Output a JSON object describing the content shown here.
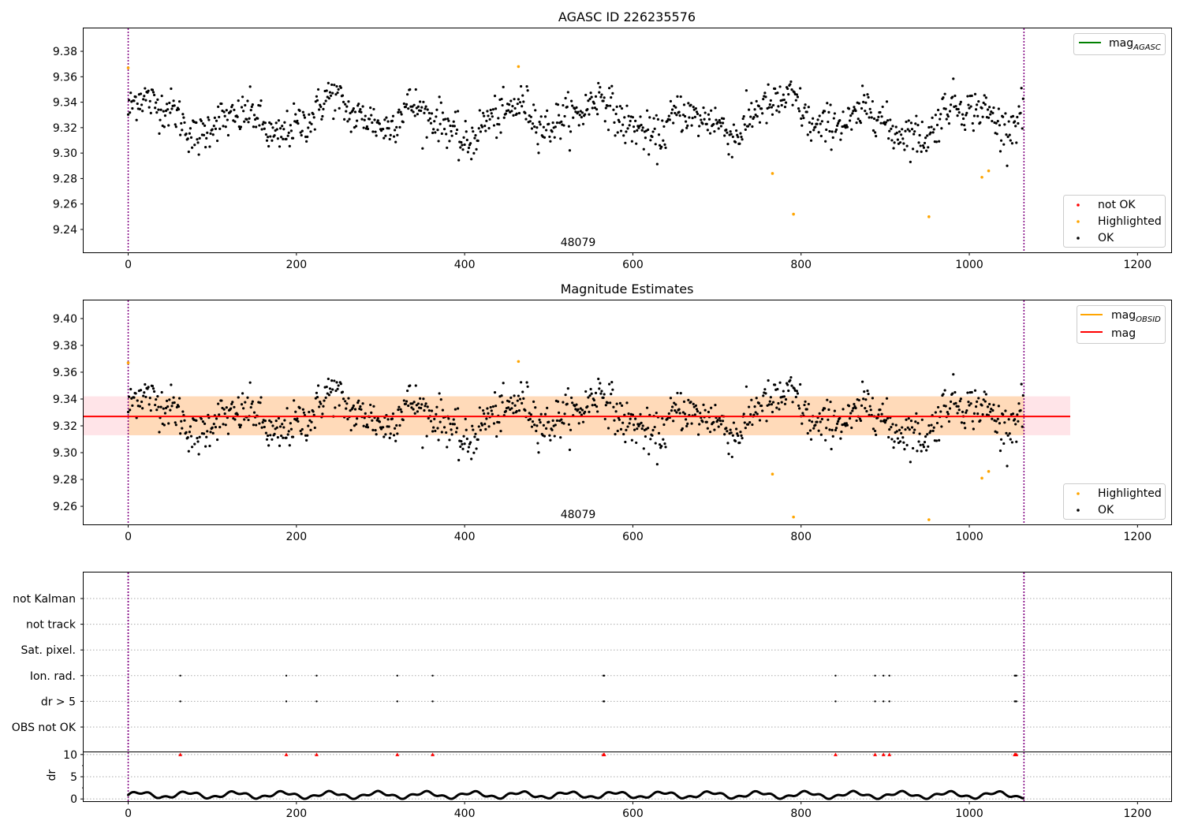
{
  "colors": {
    "ok": "#000000",
    "highlighted": "#ffa500",
    "not_ok": "#ff0000",
    "mag_agasc": "#008000",
    "mag_obsid": "#ffa500",
    "mag": "#ff0000",
    "obs_boundary": "#800080",
    "band_inner": "#ffdab9",
    "band_outer": "#ffe4e8"
  },
  "chart_data": [
    {
      "type": "scatter",
      "title": "AGASC ID 226235576",
      "xlim": [
        -53,
        1240
      ],
      "ylim": [
        9.222,
        9.398
      ],
      "xticks": [
        0,
        200,
        400,
        600,
        800,
        1000,
        1200
      ],
      "yticks": [
        9.24,
        9.26,
        9.28,
        9.3,
        9.32,
        9.34,
        9.36,
        9.38
      ],
      "obs_boundaries": [
        0,
        1065
      ],
      "obs_label": "48079",
      "series": [
        {
          "name": "mag",
          "sub": "AGASC",
          "kind": "line",
          "values": []
        },
        {
          "name": "not OK",
          "kind": "points",
          "values": []
        },
        {
          "name": "Highlighted",
          "kind": "points",
          "points": [
            [
              0,
              9.367
            ],
            [
              464,
              9.368
            ],
            [
              766,
              9.284
            ],
            [
              791,
              9.252
            ],
            [
              952,
              9.25
            ],
            [
              1015,
              9.281
            ],
            [
              1023,
              9.286
            ]
          ]
        },
        {
          "name": "OK",
          "kind": "points",
          "mean": 9.327,
          "approx_points": 1065
        }
      ]
    },
    {
      "type": "scatter",
      "title": "Magnitude Estimates",
      "xlim": [
        -53,
        1240
      ],
      "ylim": [
        9.2465,
        9.4135
      ],
      "xticks": [
        0,
        200,
        400,
        600,
        800,
        1000,
        1200
      ],
      "yticks": [
        9.26,
        9.28,
        9.3,
        9.32,
        9.34,
        9.36,
        9.38,
        9.4
      ],
      "obs_boundaries": [
        0,
        1065
      ],
      "obs_label": "48079",
      "mag": 9.327,
      "band_inner": [
        9.313,
        9.342
      ],
      "band_outer": [
        9.313,
        9.342
      ],
      "band_x": [
        -53,
        1120
      ],
      "series": [
        {
          "name": "mag",
          "sub": "OBSID",
          "kind": "line",
          "value": 9.327
        },
        {
          "name": "mag",
          "kind": "line",
          "value": 9.327
        },
        {
          "name": "Highlighted",
          "kind": "points",
          "points": [
            [
              0,
              9.367
            ],
            [
              464,
              9.368
            ],
            [
              766,
              9.284
            ],
            [
              791,
              9.252
            ],
            [
              952,
              9.25
            ],
            [
              1015,
              9.281
            ],
            [
              1023,
              9.286
            ]
          ]
        },
        {
          "name": "OK",
          "kind": "points",
          "mean": 9.327,
          "approx_points": 1065
        }
      ]
    },
    {
      "type": "scatter",
      "title": "",
      "xlim": [
        -53,
        1240
      ],
      "categories": [
        "not Kalman",
        "not track",
        "Sat. pixel.",
        "Ion. rad.",
        "dr > 5",
        "OBS not OK"
      ],
      "obs_boundaries": [
        0,
        1065
      ],
      "flags": {
        "Ion. rad.": [
          62,
          188,
          224,
          320,
          362,
          565,
          566,
          841,
          888,
          898,
          905,
          1054,
          1055,
          1056
        ],
        "dr > 5": [
          62,
          188,
          224,
          320,
          362,
          565,
          566,
          841,
          888,
          898,
          905,
          1054,
          1055,
          1056
        ]
      }
    },
    {
      "type": "scatter",
      "title": "",
      "ylabel": "dr",
      "xlim": [
        -53,
        1240
      ],
      "ylim": [
        -0.5,
        10.5
      ],
      "yticks": [
        0,
        5,
        10
      ],
      "xticks": [
        0,
        200,
        400,
        600,
        800,
        1000,
        1200
      ],
      "obs_boundaries": [
        0,
        1065
      ],
      "clipped_at_10": [
        62,
        188,
        224,
        320,
        362,
        565,
        566,
        841,
        888,
        898,
        905,
        1054,
        1055,
        1056
      ]
    }
  ]
}
